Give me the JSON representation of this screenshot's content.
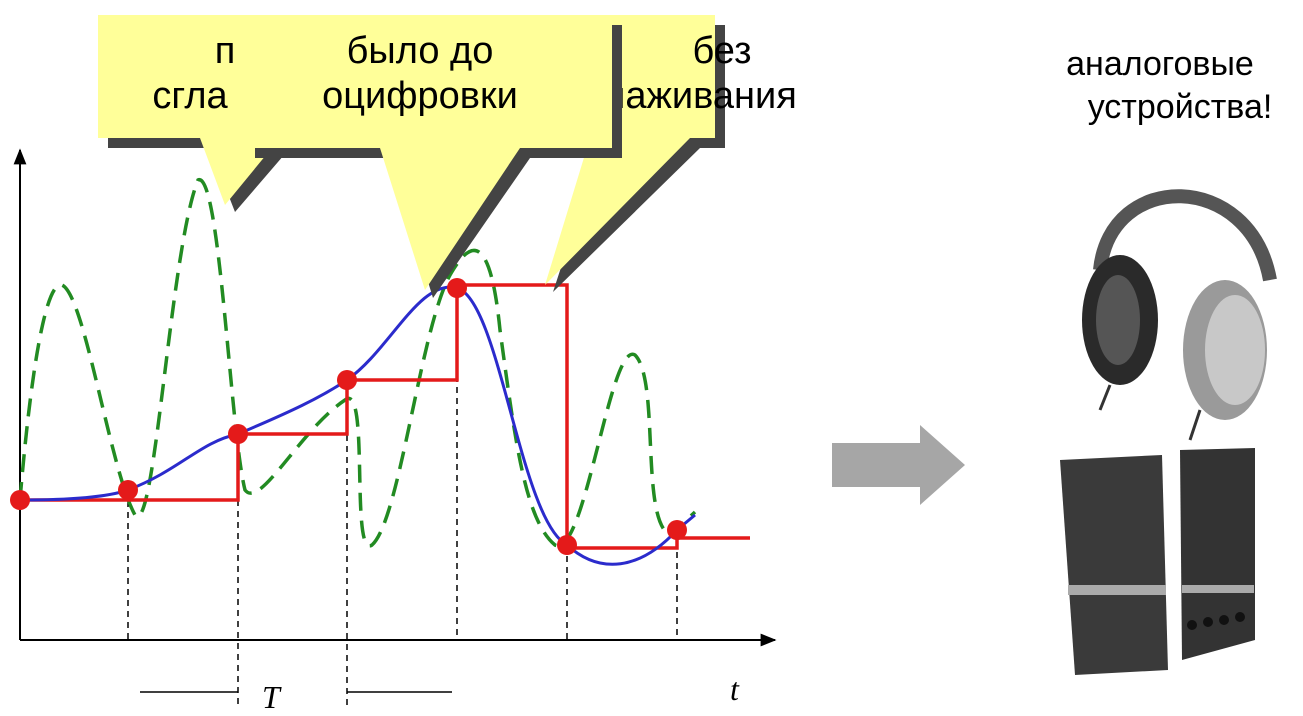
{
  "callouts": {
    "left": {
      "lines": [
        "п",
        "сгла"
      ]
    },
    "middle": {
      "lines": [
        "было до",
        "оцифровки"
      ]
    },
    "right": {
      "lines": [
        "без",
        "лаживания"
      ]
    }
  },
  "axes": {
    "x_label": "t",
    "period_label": "T"
  },
  "side": {
    "lines": [
      "аналоговые",
      "устройства!"
    ]
  }
}
